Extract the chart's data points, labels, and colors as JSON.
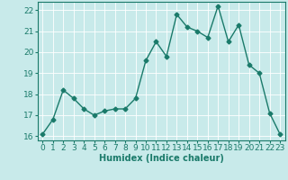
{
  "x": [
    0,
    1,
    2,
    3,
    4,
    5,
    6,
    7,
    8,
    9,
    10,
    11,
    12,
    13,
    14,
    15,
    16,
    17,
    18,
    19,
    20,
    21,
    22,
    23
  ],
  "y": [
    16.1,
    16.8,
    18.2,
    17.8,
    17.3,
    17.0,
    17.2,
    17.3,
    17.3,
    17.8,
    19.6,
    20.5,
    19.8,
    21.8,
    21.2,
    21.0,
    20.7,
    22.2,
    20.5,
    21.3,
    19.4,
    19.0,
    17.1,
    16.1
  ],
  "line_color": "#1a7a6a",
  "marker": "D",
  "marker_size": 2.5,
  "bg_color": "#c8eaea",
  "grid_color": "#ffffff",
  "xlabel": "Humidex (Indice chaleur)",
  "ylim": [
    15.8,
    22.4
  ],
  "xlim": [
    -0.5,
    23.5
  ],
  "yticks": [
    16,
    17,
    18,
    19,
    20,
    21,
    22
  ],
  "xticks": [
    0,
    1,
    2,
    3,
    4,
    5,
    6,
    7,
    8,
    9,
    10,
    11,
    12,
    13,
    14,
    15,
    16,
    17,
    18,
    19,
    20,
    21,
    22,
    23
  ],
  "xlabel_fontsize": 7,
  "tick_fontsize": 6.5
}
